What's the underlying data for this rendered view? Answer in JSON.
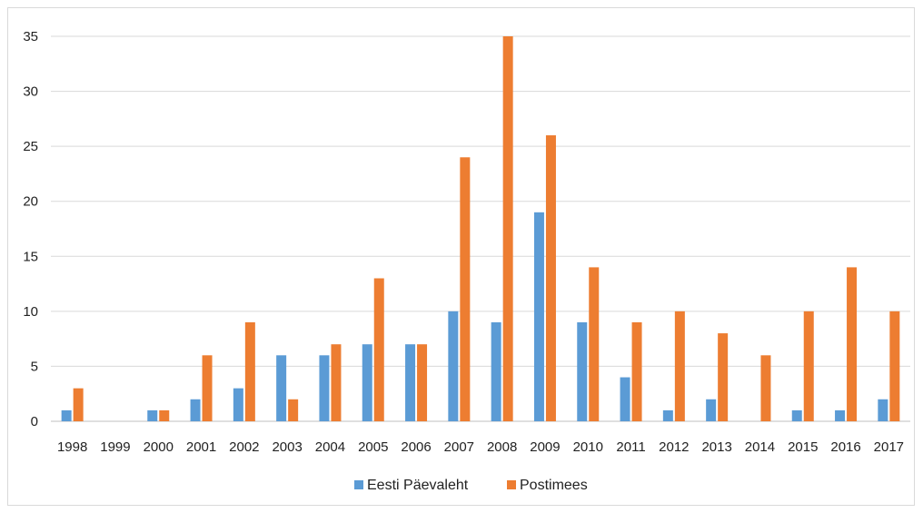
{
  "chart_data": {
    "type": "bar",
    "categories": [
      "1998",
      "1999",
      "2000",
      "2001",
      "2002",
      "2003",
      "2004",
      "2005",
      "2006",
      "2007",
      "2008",
      "2009",
      "2010",
      "2011",
      "2012",
      "2013",
      "2014",
      "2015",
      "2016",
      "2017"
    ],
    "series": [
      {
        "name": "Eesti Päevaleht",
        "color": "#5b9bd5",
        "values": [
          1,
          0,
          1,
          2,
          3,
          6,
          6,
          7,
          7,
          10,
          9,
          19,
          9,
          4,
          1,
          2,
          0,
          1,
          1,
          2
        ]
      },
      {
        "name": "Postimees",
        "color": "#ed7d31",
        "values": [
          3,
          0,
          1,
          6,
          9,
          2,
          7,
          13,
          7,
          24,
          35,
          26,
          14,
          9,
          10,
          8,
          6,
          10,
          14,
          10
        ]
      }
    ],
    "ylim": [
      0,
      35
    ],
    "yticks": [
      0,
      5,
      10,
      15,
      20,
      25,
      30,
      35
    ],
    "grid": true,
    "legend_position": "bottom"
  }
}
